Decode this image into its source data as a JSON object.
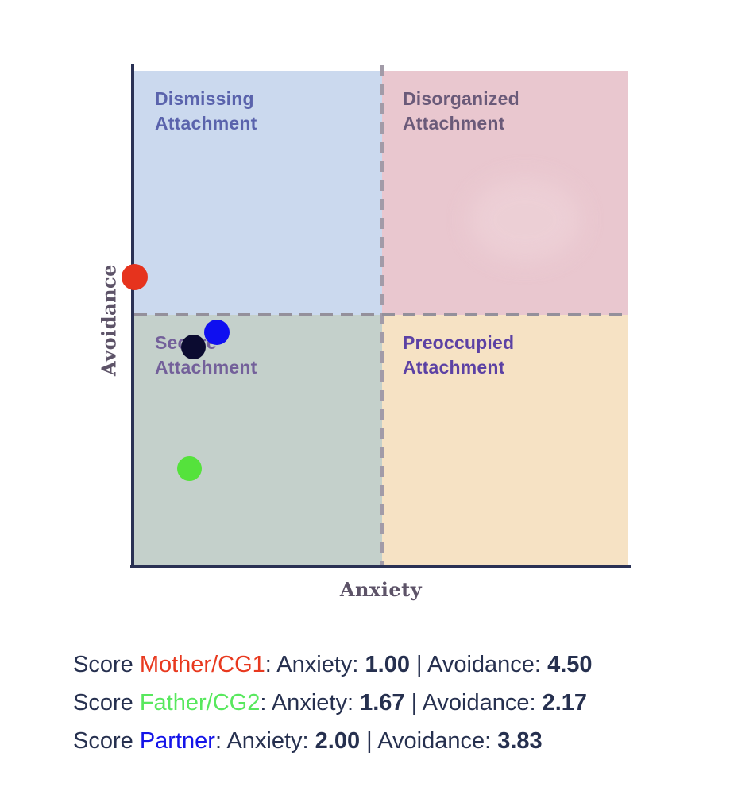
{
  "axes": {
    "x_label": "Anxiety",
    "y_label": "Avoidance",
    "line_color": "#2a3154"
  },
  "quadrants": {
    "top_left": {
      "label": "Dismissing\nAttachment",
      "bg": "#cbd9ee",
      "text_color": "#5a63ac"
    },
    "top_right": {
      "label": "Disorganized\nAttachment",
      "bg": "#e9c7cf",
      "text_color": "#6a5a79"
    },
    "bottom_left": {
      "label": "Secure\nAttachment",
      "bg": "#c4d0cb",
      "text_color": "#73609a"
    },
    "bottom_right": {
      "label": "Preoccupied\nAttachment",
      "bg": "#f6e2c4",
      "text_color": "#5c41a4"
    }
  },
  "chart_data": {
    "type": "scatter",
    "title": "",
    "xlabel": "Anxiety",
    "ylabel": "Avoidance",
    "xlim": [
      1,
      7
    ],
    "ylim": [
      1,
      7
    ],
    "grid": false,
    "quadrant_split": {
      "x": 4,
      "y": 4
    },
    "points": [
      {
        "name": "Mother/CG1",
        "x": 1.0,
        "y": 4.5,
        "color": "#e6331d",
        "size": 33
      },
      {
        "name": "Father/CG2",
        "x": 1.67,
        "y": 2.17,
        "color": "#55e23c",
        "size": 31
      },
      {
        "name": "Partner",
        "x": 2.0,
        "y": 3.83,
        "color": "#0f0ff0",
        "size": 32
      },
      {
        "name": "unlabeled",
        "x": 1.72,
        "y": 3.65,
        "color": "#0b0b30",
        "size": 31
      }
    ]
  },
  "scores": {
    "prefix": "Score ",
    "anxiety_label": ": Anxiety: ",
    "separator": " | ",
    "avoidance_label": "Avoidance: ",
    "rows": [
      {
        "name": "Mother/CG1",
        "color": "#e8391f",
        "anxiety": "1.00",
        "avoidance": "4.50"
      },
      {
        "name": "Father/CG2",
        "color": "#58e85e",
        "anxiety": "1.67",
        "avoidance": "2.17"
      },
      {
        "name": "Partner",
        "color": "#1414e8",
        "anxiety": "2.00",
        "avoidance": "3.83"
      }
    ]
  }
}
